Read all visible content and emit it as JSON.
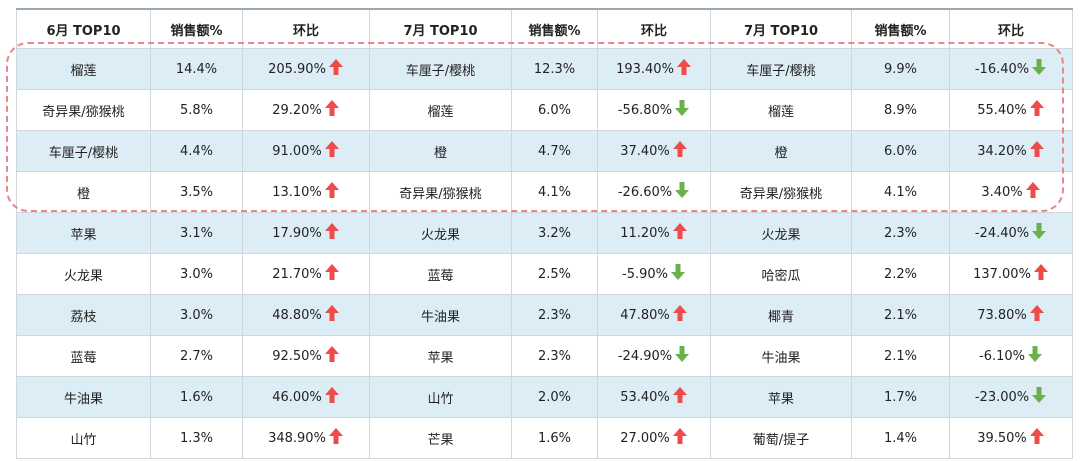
{
  "headers": [
    "6月 TOP10",
    "销售额%",
    "环比",
    "7月 TOP10",
    "销售额%",
    "环比",
    "7月 TOP10",
    "销售额%",
    "环比"
  ],
  "rows": [
    [
      {
        "name": "榴莲",
        "pct": "14.4%",
        "chg": "205.90%",
        "dir": "up"
      },
      {
        "name": "车厘子/樱桃",
        "pct": "12.3%",
        "chg": "193.40%",
        "dir": "up"
      },
      {
        "name": "车厘子/樱桃",
        "pct": "9.9%",
        "chg": "-16.40%",
        "dir": "down"
      }
    ],
    [
      {
        "name": "奇异果/猕猴桃",
        "pct": "5.8%",
        "chg": "29.20%",
        "dir": "up"
      },
      {
        "name": "榴莲",
        "pct": "6.0%",
        "chg": "-56.80%",
        "dir": "down"
      },
      {
        "name": "榴莲",
        "pct": "8.9%",
        "chg": "55.40%",
        "dir": "up"
      }
    ],
    [
      {
        "name": "车厘子/樱桃",
        "pct": "4.4%",
        "chg": "91.00%",
        "dir": "up"
      },
      {
        "name": "橙",
        "pct": "4.7%",
        "chg": "37.40%",
        "dir": "up"
      },
      {
        "name": "橙",
        "pct": "6.0%",
        "chg": "34.20%",
        "dir": "up"
      }
    ],
    [
      {
        "name": "橙",
        "pct": "3.5%",
        "chg": "13.10%",
        "dir": "up"
      },
      {
        "name": "奇异果/猕猴桃",
        "pct": "4.1%",
        "chg": "-26.60%",
        "dir": "down"
      },
      {
        "name": "奇异果/猕猴桃",
        "pct": "4.1%",
        "chg": "3.40%",
        "dir": "up"
      }
    ],
    [
      {
        "name": "苹果",
        "pct": "3.1%",
        "chg": "17.90%",
        "dir": "up"
      },
      {
        "name": "火龙果",
        "pct": "3.2%",
        "chg": "11.20%",
        "dir": "up"
      },
      {
        "name": "火龙果",
        "pct": "2.3%",
        "chg": "-24.40%",
        "dir": "down"
      }
    ],
    [
      {
        "name": "火龙果",
        "pct": "3.0%",
        "chg": "21.70%",
        "dir": "up"
      },
      {
        "name": "蓝莓",
        "pct": "2.5%",
        "chg": "-5.90%",
        "dir": "down"
      },
      {
        "name": "哈密瓜",
        "pct": "2.2%",
        "chg": "137.00%",
        "dir": "up"
      }
    ],
    [
      {
        "name": "荔枝",
        "pct": "3.0%",
        "chg": "48.80%",
        "dir": "up"
      },
      {
        "name": "牛油果",
        "pct": "2.3%",
        "chg": "47.80%",
        "dir": "up"
      },
      {
        "name": "椰青",
        "pct": "2.1%",
        "chg": "73.80%",
        "dir": "up"
      }
    ],
    [
      {
        "name": "蓝莓",
        "pct": "2.7%",
        "chg": "92.50%",
        "dir": "up"
      },
      {
        "name": "苹果",
        "pct": "2.3%",
        "chg": "-24.90%",
        "dir": "down"
      },
      {
        "name": "牛油果",
        "pct": "2.1%",
        "chg": "-6.10%",
        "dir": "down"
      }
    ],
    [
      {
        "name": "牛油果",
        "pct": "1.6%",
        "chg": "46.00%",
        "dir": "up"
      },
      {
        "name": "山竹",
        "pct": "2.0%",
        "chg": "53.40%",
        "dir": "up"
      },
      {
        "name": "苹果",
        "pct": "1.7%",
        "chg": "-23.00%",
        "dir": "down"
      }
    ],
    [
      {
        "name": "山竹",
        "pct": "1.3%",
        "chg": "348.90%",
        "dir": "up"
      },
      {
        "name": "芒果",
        "pct": "1.6%",
        "chg": "27.00%",
        "dir": "up"
      },
      {
        "name": "葡萄/提子",
        "pct": "1.4%",
        "chg": "39.50%",
        "dir": "up"
      }
    ]
  ],
  "colors": {
    "up_arrow": "#ee4b4b",
    "down_arrow": "#6ab04c",
    "row_shade": "#ddedf5",
    "highlight_border": "#e8868d"
  },
  "icons": {
    "up": "arrow-up-icon",
    "down": "arrow-down-icon"
  }
}
